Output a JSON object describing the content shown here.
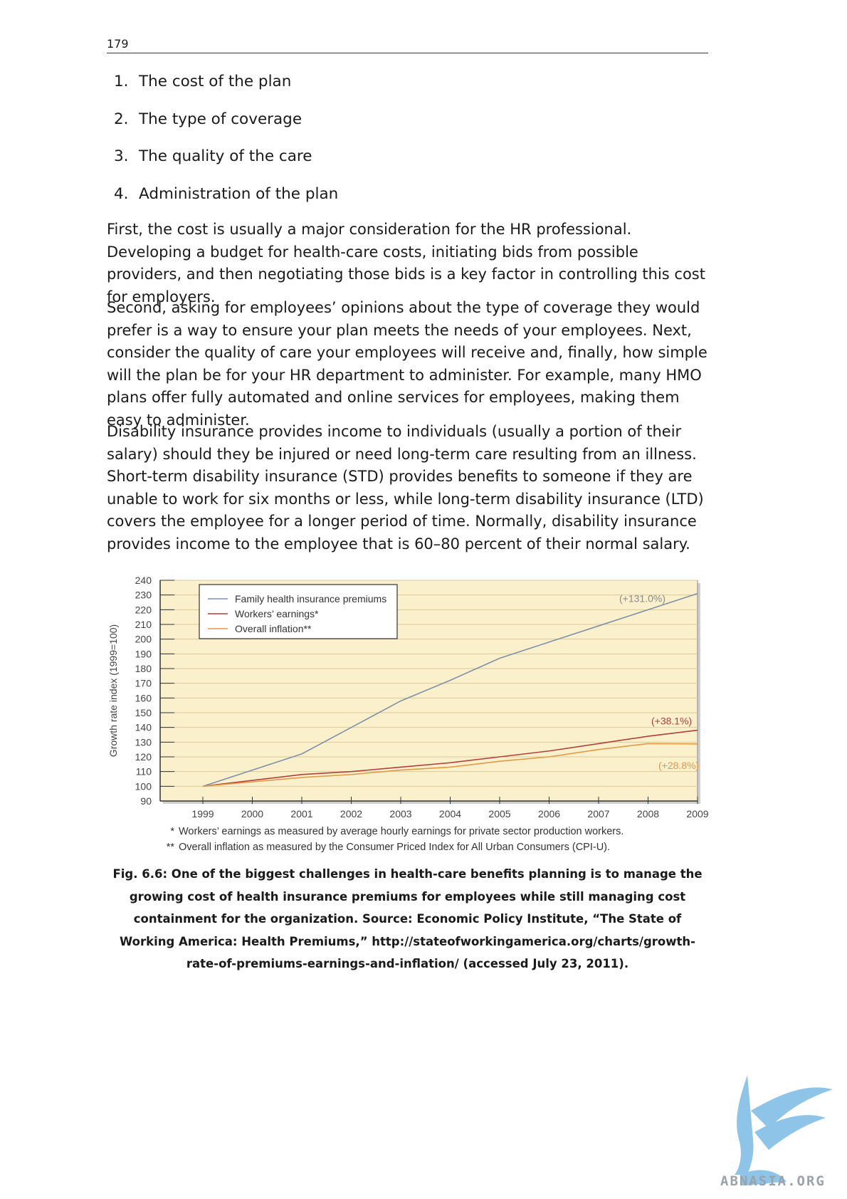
{
  "page": {
    "number": "179",
    "list": [
      {
        "num": "1.",
        "text": "The cost of the plan"
      },
      {
        "num": "2.",
        "text": "The type of coverage"
      },
      {
        "num": "3.",
        "text": "The quality of the care"
      },
      {
        "num": "4.",
        "text": "Administration of the plan"
      }
    ],
    "paragraphs": [
      "First, the cost is usually a major consideration for the HR professional. Developing a budget for health-care costs, initiating bids from possible providers, and then negotiating those bids is a key factor in controlling this cost for employers.",
      "Second, asking for employees’ opinions about the type of coverage they would prefer is a way to ensure your plan meets the needs of your employees. Next, consider the quality of care your employees will receive and, finally, how simple will the plan be for your HR department to administer. For example, many HMO plans offer fully automated and online services for employees, making them easy to administer.",
      "Disability insurance provides income to individuals (usually a portion of their salary) should they be injured or need long-term care resulting from an illness. Short-term disability insurance (STD) provides benefits to someone if they are unable to work for six months or less, while long-term disability insurance (LTD) covers the employee for a longer period of time. Normally, disability insurance provides income to the employee that is 60–80 percent of their normal salary."
    ],
    "footnotes": [
      {
        "mark": "*",
        "text": "Workers’ earnings as measured by average hourly earnings for private sector production workers."
      },
      {
        "mark": "**",
        "text": "Overall inflation as measured by the Consumer Priced Index for All Urban Consumers (CPI-U)."
      }
    ],
    "caption": "Fig. 6.6: One of the biggest challenges in health-care benefits planning is to manage the growing cost of health insurance premiums for employees while still managing cost containment for the organization. Source: Economic Policy Institute, “The State of Working America: Health Premiums,” http://stateofworkingamerica.org/charts/growth-rate-of-premiums-earnings-and-inflation/ (accessed July 23, 2011).",
    "watermark": "ABNASIA.ORG"
  },
  "chart_data": {
    "type": "line",
    "title": "",
    "xlabel": "",
    "ylabel": "Growth rate index (1999=100)",
    "x": [
      1999,
      2000,
      2001,
      2002,
      2003,
      2004,
      2005,
      2006,
      2007,
      2008,
      2009
    ],
    "ylim": [
      90,
      240
    ],
    "yticks": [
      90,
      100,
      110,
      120,
      130,
      140,
      150,
      160,
      170,
      180,
      190,
      200,
      210,
      220,
      230,
      240
    ],
    "grid": true,
    "legend": "top-left",
    "series": [
      {
        "name": "Family health insurance premiums",
        "color": "#8090a8",
        "values": [
          100,
          111,
          122,
          140,
          158,
          172,
          187,
          198,
          209,
          220,
          231
        ],
        "end_label": "(+131.0%)",
        "label_color": "#8a8a8a"
      },
      {
        "name": "Workers’ earnings*",
        "color": "#b0403a",
        "values": [
          100,
          104,
          108,
          110,
          113,
          116,
          120,
          124,
          129,
          134,
          138.1
        ],
        "end_label": "(+38.1%)",
        "label_color": "#b0403a"
      },
      {
        "name": "Overall inflation**",
        "color": "#e09a4a",
        "values": [
          100,
          103,
          106,
          108,
          111,
          113,
          117,
          120,
          125,
          129,
          128.8
        ],
        "end_label": "(+28.8%)",
        "label_color": "#e09a4a"
      }
    ],
    "colors": {
      "plot_background": "#faf0cc",
      "grid": "#d9c99a",
      "axis_text": "#444444"
    }
  }
}
